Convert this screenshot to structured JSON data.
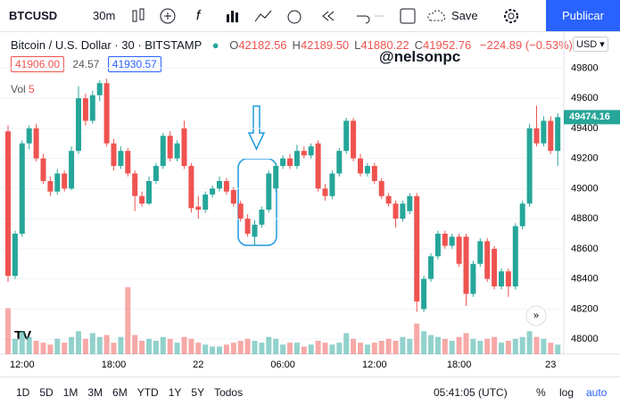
{
  "toolbar": {
    "symbol": "BTCUSD",
    "interval": "30m",
    "save": "Save",
    "publish": "Publicar"
  },
  "legend": {
    "title": "Bitcoin / U.S. Dollar · 30 · BITSTAMP",
    "ohlc": [
      {
        "label": "O",
        "value": "42182.56"
      },
      {
        "label": "H",
        "value": "42189.50"
      },
      {
        "label": "L",
        "value": "41880.22"
      },
      {
        "label": "C",
        "value": "41952.76"
      }
    ],
    "change": "−224.89 (−0.53%)",
    "bid": "41906.00",
    "spread": "24.57",
    "ask": "41930.57",
    "volume_label": "Vol",
    "volume_value": "5",
    "currency": "USD ▾"
  },
  "annotation": "@nelsonpc",
  "bottom": {
    "ranges": [
      "1D",
      "5D",
      "1M",
      "3M",
      "6M",
      "YTD",
      "1Y",
      "5Y",
      "Todos"
    ],
    "clock": "05:41:05 (UTC)",
    "percent": "%",
    "log": "log",
    "auto": "auto"
  },
  "chart_data": {
    "type": "candlestick",
    "up_color": "#26a69a",
    "down_color": "#ef5350",
    "categories": [
      null,
      null,
      "12:00",
      null,
      null,
      null,
      null,
      null,
      null,
      null,
      null,
      null,
      null,
      null,
      null,
      "18:00",
      null,
      null,
      null,
      null,
      null,
      null,
      null,
      null,
      null,
      null,
      null,
      "22",
      null,
      null,
      null,
      null,
      null,
      null,
      null,
      null,
      null,
      null,
      null,
      "06:00",
      null,
      null,
      null,
      null,
      null,
      null,
      null,
      null,
      null,
      null,
      null,
      null,
      "12:00",
      null,
      null,
      null,
      null,
      null,
      null,
      null,
      null,
      null,
      null,
      null,
      "18:00",
      null,
      null,
      null,
      null,
      null,
      null,
      null,
      null,
      null,
      null,
      null,
      null,
      "23",
      null
    ],
    "open": [
      49380,
      48420,
      48700,
      49300,
      49400,
      49200,
      49050,
      48980,
      49100,
      49000,
      49250,
      49600,
      49450,
      49620,
      49700,
      49300,
      49150,
      49250,
      49100,
      48950,
      48900,
      49050,
      49150,
      49350,
      49200,
      49400,
      49150,
      48880,
      48860,
      48960,
      49000,
      49050,
      48990,
      48900,
      48800,
      48680,
      48760,
      48860,
      49000,
      49150,
      49200,
      49150,
      49250,
      49220,
      49300,
      49000,
      48950,
      49100,
      49250,
      49450,
      49200,
      49100,
      49150,
      49050,
      48950,
      48900,
      48800,
      48850,
      48950,
      48200,
      48400,
      48550,
      48700,
      48620,
      48680,
      48680,
      48300,
      48500,
      48650,
      48600,
      48350,
      48450,
      48350,
      48750,
      48900,
      49400,
      49300,
      49450,
      49250
    ],
    "high": [
      49420,
      48720,
      49320,
      49420,
      49430,
      49230,
      49080,
      49130,
      49120,
      49280,
      49680,
      49630,
      49650,
      49720,
      49730,
      49330,
      49280,
      49270,
      49120,
      48980,
      49080,
      49170,
      49370,
      49380,
      49320,
      49450,
      49170,
      48950,
      48980,
      49020,
      49080,
      49070,
      49010,
      48920,
      48830,
      48790,
      48880,
      49120,
      49170,
      49220,
      49230,
      49290,
      49280,
      49300,
      49320,
      49030,
      49120,
      49270,
      49470,
      49470,
      49230,
      49170,
      49170,
      49070,
      48970,
      48920,
      48920,
      48970,
      48970,
      48420,
      48570,
      48720,
      48720,
      48700,
      48700,
      48700,
      48520,
      48670,
      48670,
      48620,
      48470,
      48470,
      48770,
      48920,
      49430,
      49550,
      49480,
      49480,
      49500
    ],
    "low": [
      48380,
      48400,
      48680,
      49260,
      49180,
      49030,
      48950,
      48960,
      48980,
      48990,
      49230,
      49420,
      49430,
      49580,
      49280,
      49120,
      49130,
      49080,
      48850,
      48880,
      48890,
      49030,
      49130,
      49180,
      49180,
      49130,
      48840,
      48800,
      48840,
      48940,
      48980,
      48960,
      48880,
      48780,
      48680,
      48620,
      48740,
      48840,
      48980,
      49130,
      49130,
      49130,
      49200,
      49200,
      48980,
      48920,
      48930,
      49080,
      49230,
      49180,
      49080,
      49080,
      49030,
      48930,
      48880,
      48740,
      48780,
      48830,
      48180,
      48180,
      48380,
      48530,
      48600,
      48600,
      48480,
      48220,
      48280,
      48480,
      48380,
      48330,
      48330,
      48280,
      48330,
      48730,
      48880,
      49280,
      49280,
      49230,
      49150
    ],
    "close": [
      48420,
      48700,
      49300,
      49400,
      49200,
      49050,
      48980,
      49100,
      49000,
      49250,
      49600,
      49450,
      49620,
      49700,
      49300,
      49150,
      49250,
      49100,
      48950,
      48900,
      49050,
      49150,
      49350,
      49200,
      49300,
      49150,
      48870,
      48860,
      48960,
      49000,
      49050,
      48980,
      48900,
      48800,
      48700,
      48760,
      48860,
      49100,
      49150,
      49200,
      49150,
      49250,
      49220,
      49280,
      49000,
      48950,
      49100,
      49250,
      49450,
      49200,
      49100,
      49150,
      49050,
      48950,
      48900,
      48800,
      48900,
      48950,
      48250,
      48400,
      48550,
      48700,
      48620,
      48680,
      48500,
      48300,
      48500,
      48650,
      48400,
      48350,
      48450,
      48350,
      48750,
      48900,
      49400,
      49300,
      49450,
      49250,
      49474.16
    ],
    "volume": [
      120,
      40,
      60,
      45,
      35,
      30,
      25,
      40,
      30,
      45,
      60,
      40,
      55,
      45,
      50,
      30,
      45,
      175,
      50,
      35,
      40,
      35,
      45,
      40,
      30,
      45,
      40,
      30,
      25,
      20,
      20,
      25,
      30,
      35,
      40,
      35,
      30,
      45,
      40,
      25,
      30,
      30,
      20,
      25,
      35,
      30,
      25,
      30,
      55,
      40,
      30,
      25,
      30,
      35,
      40,
      35,
      45,
      40,
      80,
      60,
      50,
      45,
      40,
      35,
      45,
      55,
      40,
      35,
      40,
      45,
      30,
      35,
      40,
      45,
      60,
      45,
      40,
      30,
      25
    ],
    "ylim": [
      47900,
      50045
    ],
    "yticks": [
      49800,
      49600,
      49400,
      49200,
      49000,
      48800,
      48600,
      48400,
      48200,
      48000
    ]
  }
}
